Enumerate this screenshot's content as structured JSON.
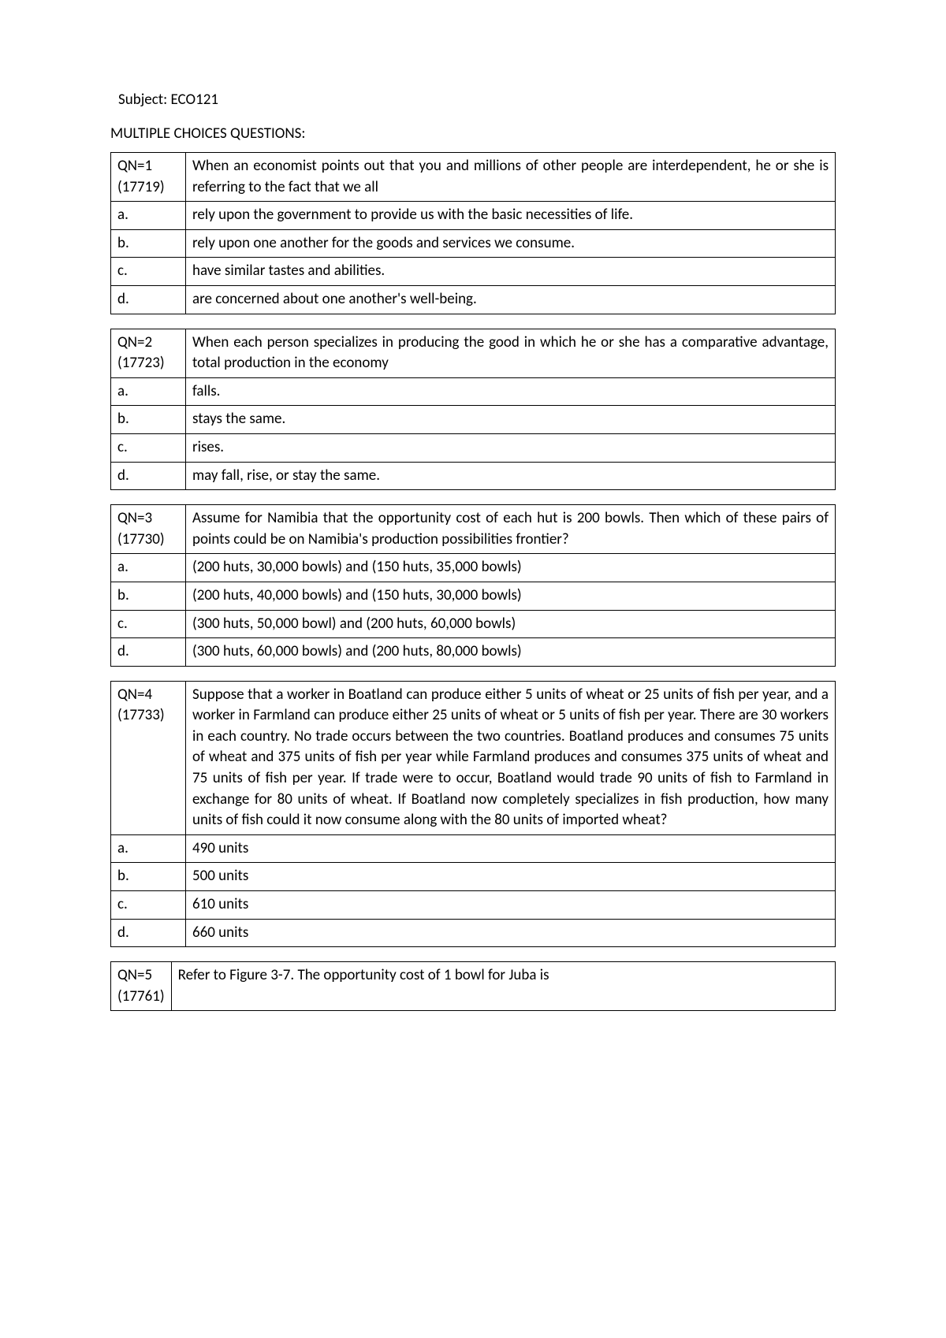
{
  "header": {
    "subject": "Subject: ECO121",
    "sectionTitle": "MULTIPLE CHOICES QUESTIONS:"
  },
  "q1": {
    "label": "QN=1 (17719)",
    "question": "When an economist points out that you and millions of other people are interdependent, he or she is referring to the fact that we all",
    "a_label": "a.",
    "a": "rely upon the government to provide us with the basic necessities of life.",
    "b_label": "b.",
    "b": "rely upon one another for the goods and services we consume.",
    "c_label": "c.",
    "c": "have similar tastes and abilities.",
    "d_label": "d.",
    "d": "are concerned about one another's well-being."
  },
  "q2": {
    "label": "QN=2 (17723)",
    "question": "When each person specializes in producing the good in which he or she has a comparative advantage, total production in the economy",
    "a_label": "a.",
    "a": "falls.",
    "b_label": "b.",
    "b": "stays the same.",
    "c_label": "c.",
    "c": "rises.",
    "d_label": "d.",
    "d": "may fall, rise, or stay the same."
  },
  "q3": {
    "label": "QN=3 (17730)",
    "question": "Assume for Namibia that the opportunity cost of each hut is 200 bowls.  Then which of these pairs of points could be on Namibia's production possibilities frontier?",
    "a_label": "a.",
    "a": "(200 huts, 30,000 bowls) and (150 huts, 35,000 bowls)",
    "b_label": "b.",
    "b": "(200 huts, 40,000 bowls) and (150 huts, 30,000 bowls)",
    "c_label": "c.",
    "c": "(300 huts, 50,000 bowl) and (200 huts, 60,000 bowls)",
    "d_label": "d.",
    "d": "(300 huts, 60,000 bowls) and (200 huts, 80,000 bowls)"
  },
  "q4": {
    "label": "QN=4 (17733)",
    "question": "Suppose that a worker in Boatland can produce either 5 units of wheat or 25 units of fish per year, and a worker in Farmland can produce either 25 units of wheat or 5 units of fish per year.  There are 30 workers in each country.  No trade occurs between the two countries. Boatland produces and consumes 75 units of wheat and 375 units of fish per year while Farmland produces and consumes 375 units of wheat and 75 units of fish per year.  If trade were to occur, Boatland would trade 90 units of fish to Farmland in exchange for 80 units of wheat.  If Boatland now completely specializes in fish production, how many units of fish could it now consume along with the 80 units of imported wheat?",
    "a_label": "a.",
    "a": "490 units",
    "b_label": "b.",
    "b": "500 units",
    "c_label": "c.",
    "c": "610 units",
    "d_label": "d.",
    "d": "660 units"
  },
  "q5": {
    "label": "QN=5 (17761)",
    "question": "Refer to Figure 3-7.  The opportunity cost of 1 bowl for Juba is"
  }
}
